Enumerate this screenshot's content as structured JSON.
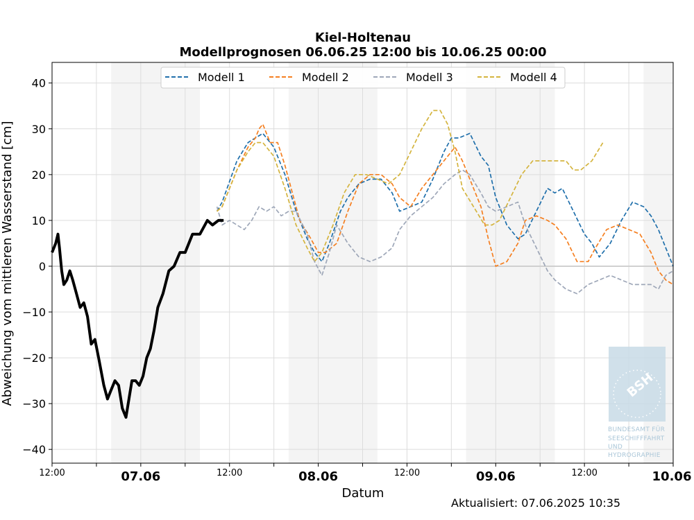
{
  "chart_data": {
    "type": "line",
    "title": "Kiel-Holtenau",
    "subtitle": "Modellprognosen 06.06.25 12:00 bis 10.06.25 00:00",
    "xlabel": "Datum",
    "ylabel": "Abweichung vom mittleren Wasserstand [cm]",
    "xlim_hours": [
      0,
      84
    ],
    "ylim": [
      -43,
      44.5
    ],
    "y_ticks": [
      40,
      30,
      20,
      10,
      0,
      -10,
      -20,
      -30,
      -40
    ],
    "y_tick_labels": [
      "40",
      "30",
      "20",
      "10",
      "0",
      "−10",
      "−20",
      "−30",
      "−40"
    ],
    "x_ticks": [
      {
        "h": 0,
        "label": "12:00",
        "major": false
      },
      {
        "h": 12,
        "label": "07.06",
        "major": true
      },
      {
        "h": 24,
        "label": "12:00",
        "major": false
      },
      {
        "h": 36,
        "label": "08.06",
        "major": true
      },
      {
        "h": 48,
        "label": "12:00",
        "major": false
      },
      {
        "h": 60,
        "label": "09.06",
        "major": true
      },
      {
        "h": 72,
        "label": "12:00",
        "major": false
      },
      {
        "h": 84,
        "label": "10.06",
        "major": true
      }
    ],
    "night_bands_hours": [
      [
        8,
        20
      ],
      [
        32,
        44
      ],
      [
        56,
        68
      ],
      [
        80,
        84
      ]
    ],
    "grid": true,
    "legend_position": "top-center",
    "series": [
      {
        "name": "Modell 1",
        "color": "#1f6fab",
        "style": "dashed",
        "x": [
          22.3,
          23,
          25,
          26.5,
          27.5,
          28.5,
          30,
          31.5,
          33,
          34.5,
          35.5,
          36.5,
          37.5,
          39,
          40,
          41.5,
          43,
          44.5,
          46,
          47,
          48.5,
          50,
          51.5,
          53,
          54,
          55,
          56.5,
          58,
          59,
          60,
          61.5,
          63,
          64,
          65.5,
          67,
          68,
          69,
          70.5,
          72,
          73,
          74,
          75.5,
          77,
          78.5,
          80,
          81,
          82,
          83,
          84
        ],
        "y": [
          12,
          14,
          23,
          27,
          28,
          29,
          26,
          20,
          12,
          6,
          3,
          1,
          5,
          12,
          15,
          18,
          19,
          19,
          16,
          12,
          13,
          14,
          19,
          25,
          28,
          28,
          29,
          24,
          22,
          15,
          9,
          6,
          7,
          12,
          17,
          16,
          17,
          12,
          7,
          5,
          2,
          5,
          10,
          14,
          13,
          11,
          8,
          4,
          0
        ]
      },
      {
        "name": "Modell 2",
        "color": "#f57f20",
        "style": "dashed",
        "x": [
          22.3,
          23,
          25,
          26.5,
          27.5,
          28,
          28.5,
          29.5,
          30.5,
          31.5,
          32.5,
          33.5,
          35,
          36,
          37,
          38.5,
          40,
          41.5,
          43,
          44.5,
          46,
          47,
          48.5,
          50,
          51.5,
          53,
          54.5,
          55.5,
          56.5,
          58,
          59,
          60,
          61.5,
          63,
          64,
          65.5,
          67,
          68,
          69.5,
          71,
          72.5,
          73.5,
          75,
          76.5,
          78,
          79.5,
          81,
          82,
          83,
          84
        ],
        "y": [
          12,
          13,
          21,
          26,
          28,
          30,
          31,
          27,
          27,
          22,
          16,
          10,
          6,
          3,
          3,
          5,
          12,
          18,
          20,
          20,
          18,
          15,
          13,
          17,
          20,
          23,
          26,
          23,
          19,
          13,
          6,
          0,
          1,
          5,
          10,
          11,
          10,
          9,
          6,
          1,
          1,
          4,
          8,
          9,
          8,
          7,
          3,
          -1,
          -3,
          -4
        ]
      },
      {
        "name": "Modell 3",
        "color": "#9ea7b8",
        "style": "dashed",
        "x": [
          22.3,
          23,
          24,
          25,
          26,
          27,
          28,
          29,
          30,
          31,
          32,
          33,
          34.5,
          35.5,
          36.5,
          37.5,
          38.5,
          40,
          41.5,
          43,
          44.5,
          46,
          47,
          48.5,
          50,
          51.5,
          53,
          54.5,
          55.5,
          56.5,
          58,
          59,
          60,
          61.5,
          63,
          64,
          65.5,
          67,
          68,
          69.5,
          71,
          72.5,
          74,
          75.5,
          77,
          78.5,
          80,
          81,
          82,
          83,
          84
        ],
        "y": [
          13,
          9,
          10,
          9,
          8,
          10,
          13,
          12,
          13,
          11,
          12,
          12,
          7,
          1,
          -2,
          3,
          9,
          5,
          2,
          1,
          2,
          4,
          8,
          11,
          13,
          15,
          18,
          20,
          21,
          20,
          16,
          13,
          12,
          13,
          14,
          9,
          4,
          -1,
          -3,
          -5,
          -6,
          -4,
          -3,
          -2,
          -3,
          -4,
          -4,
          -4,
          -5,
          -2,
          -1
        ]
      },
      {
        "name": "Modell 4",
        "color": "#d4b43e",
        "style": "dashed",
        "x": [
          22.3,
          23,
          25,
          26.5,
          27.5,
          28.5,
          30,
          31.5,
          33,
          34.5,
          35.5,
          36.5,
          38,
          39.5,
          41,
          42.5,
          44,
          45.5,
          47,
          48.5,
          50,
          51.5,
          52.5,
          53.5,
          54.5,
          55.5,
          57,
          58.5,
          59.5,
          60.5,
          62,
          63.5,
          65,
          66.5,
          68,
          69.5,
          70.5,
          71.5,
          73,
          74.5
        ],
        "y": [
          12,
          13,
          21,
          25,
          27,
          27,
          24,
          17,
          9,
          4,
          1,
          3,
          9,
          16,
          20,
          20,
          19,
          18,
          20,
          25,
          30,
          34,
          34,
          31,
          25,
          17,
          13,
          9,
          9,
          10,
          15,
          20,
          23,
          23,
          23,
          23,
          21,
          21,
          23,
          27
        ]
      },
      {
        "name": "",
        "color": "#000000",
        "style": "solid",
        "x": [
          0,
          0.5,
          0.8,
          1,
          1.3,
          1.6,
          2,
          2.4,
          2.8,
          3.3,
          3.8,
          4.3,
          4.8,
          5.3,
          5.8,
          6.3,
          7,
          7.5,
          8,
          8.5,
          9,
          9.5,
          10,
          10.4,
          10.8,
          11.3,
          11.8,
          12.3,
          12.8,
          13.3,
          13.8,
          14.3,
          15,
          15.8,
          16.5,
          17.3,
          18,
          19,
          20,
          21,
          21.7,
          22.5,
          23.2
        ],
        "y": [
          3,
          5,
          7,
          4,
          -1,
          -4,
          -3,
          -1,
          -3,
          -6,
          -9,
          -8,
          -11,
          -17,
          -16,
          -20,
          -26,
          -29,
          -27,
          -25,
          -26,
          -31,
          -33,
          -29,
          -25,
          -25,
          -26,
          -24,
          -20,
          -18,
          -14,
          -9,
          -6,
          -1,
          0,
          3,
          3,
          7,
          7,
          10,
          9,
          10,
          10
        ]
      }
    ],
    "zero_line": true,
    "watermark": "BSH",
    "logo_text": [
      "BUNDESAMT FÜR",
      "SEESCHIFFFAHRT",
      "UND",
      "HYDROGRAPHIE"
    ],
    "updated": "Aktualisiert: 07.06.2025 10:35"
  }
}
